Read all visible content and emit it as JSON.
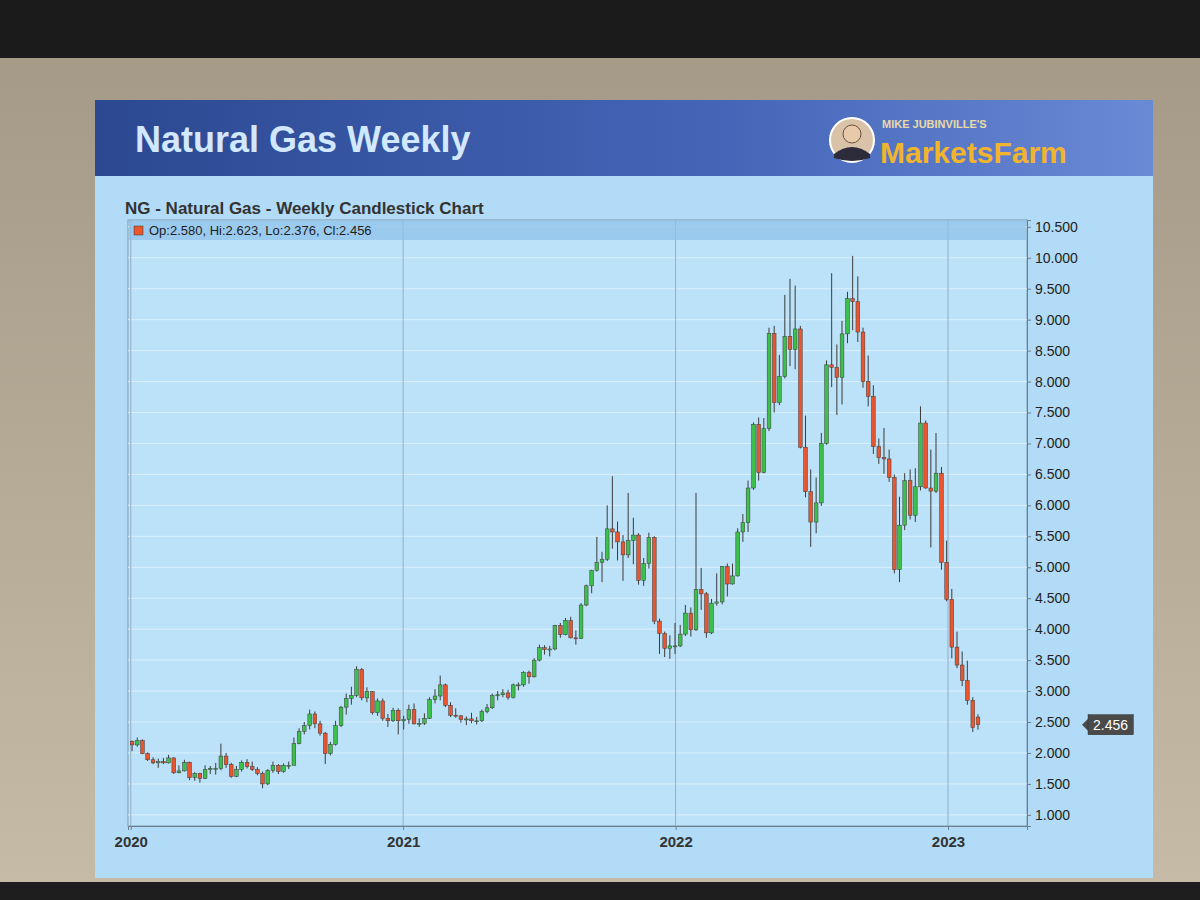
{
  "slide": {
    "title": "Natural Gas Weekly",
    "brand_top": "MIKE JUBINVILLE'S",
    "brand": "MarketsFarm"
  },
  "chart_data": {
    "type": "candlestick",
    "title": "NG - Natural Gas - Weekly Candlestick Chart",
    "annotations": [
      "Op:2.580, Hi:2.623, Lo:2.376, Cl:2.456"
    ],
    "last_price": {
      "value": 2.456,
      "label": "2.456"
    },
    "grid": true,
    "xlim": [
      2019.99,
      2023.29
    ],
    "xticks": [
      2020,
      2021,
      2022,
      2023
    ],
    "ylim": [
      0.82,
      10.61
    ],
    "yticks": [
      {
        "value": 1,
        "label": "1.000"
      },
      {
        "value": 1.5,
        "label": "1.500"
      },
      {
        "value": 2,
        "label": "2.000"
      },
      {
        "value": 2.5,
        "label": "2.500"
      },
      {
        "value": 3,
        "label": "3.000"
      },
      {
        "value": 3.5,
        "label": "3.500"
      },
      {
        "value": 4,
        "label": "4.000"
      },
      {
        "value": 4.5,
        "label": "4.500"
      },
      {
        "value": 5,
        "label": "5.000"
      },
      {
        "value": 5.5,
        "label": "5.500"
      },
      {
        "value": 6,
        "label": "6.000"
      },
      {
        "value": 6.5,
        "label": "6.500"
      },
      {
        "value": 7,
        "label": "7.000"
      },
      {
        "value": 7.5,
        "label": "7.500"
      },
      {
        "value": 8,
        "label": "8.000"
      },
      {
        "value": 8.5,
        "label": "8.500"
      },
      {
        "value": 9,
        "label": "9.000"
      },
      {
        "value": 9.5,
        "label": "9.500"
      },
      {
        "value": 10,
        "label": "10.000"
      },
      {
        "value": 10.5,
        "label": "10.500"
      }
    ],
    "x": [
      2020.005,
      2020.024,
      2020.043,
      2020.062,
      2020.082,
      2020.101,
      2020.12,
      2020.139,
      2020.158,
      2020.177,
      2020.197,
      2020.216,
      2020.235,
      2020.254,
      2020.273,
      2020.292,
      2020.312,
      2020.331,
      2020.35,
      2020.369,
      2020.388,
      2020.407,
      2020.427,
      2020.446,
      2020.465,
      2020.484,
      2020.503,
      2020.522,
      2020.542,
      2020.561,
      2020.58,
      2020.599,
      2020.618,
      2020.637,
      2020.657,
      2020.676,
      2020.695,
      2020.714,
      2020.733,
      2020.752,
      2020.772,
      2020.791,
      2020.81,
      2020.829,
      2020.848,
      2020.867,
      2020.887,
      2020.906,
      2020.925,
      2020.944,
      2020.963,
      2020.982,
      2021.002,
      2021.021,
      2021.04,
      2021.059,
      2021.078,
      2021.097,
      2021.117,
      2021.136,
      2021.155,
      2021.174,
      2021.193,
      2021.212,
      2021.232,
      2021.251,
      2021.27,
      2021.289,
      2021.308,
      2021.327,
      2021.347,
      2021.366,
      2021.385,
      2021.404,
      2021.423,
      2021.442,
      2021.462,
      2021.481,
      2021.5,
      2021.519,
      2021.538,
      2021.557,
      2021.577,
      2021.596,
      2021.615,
      2021.634,
      2021.653,
      2021.672,
      2021.692,
      2021.711,
      2021.73,
      2021.749,
      2021.768,
      2021.787,
      2021.807,
      2021.826,
      2021.845,
      2021.864,
      2021.883,
      2021.902,
      2021.922,
      2021.941,
      2021.96,
      2021.979,
      2021.998,
      2022.017,
      2022.036,
      2022.056,
      2022.075,
      2022.094,
      2022.113,
      2022.132,
      2022.151,
      2022.171,
      2022.19,
      2022.209,
      2022.228,
      2022.247,
      2022.266,
      2022.286,
      2022.305,
      2022.324,
      2022.343,
      2022.362,
      2022.381,
      2022.401,
      2022.42,
      2022.439,
      2022.458,
      2022.477,
      2022.496,
      2022.516,
      2022.535,
      2022.554,
      2022.573,
      2022.592,
      2022.611,
      2022.631,
      2022.65,
      2022.669,
      2022.688,
      2022.707,
      2022.726,
      2022.746,
      2022.765,
      2022.784,
      2022.803,
      2022.822,
      2022.841,
      2022.861,
      2022.88,
      2022.899,
      2022.918,
      2022.937,
      2022.956,
      2022.976,
      2022.995,
      2023.014,
      2023.033,
      2023.052,
      2023.071,
      2023.091,
      2023.11
    ],
    "open": [
      2.19,
      2.13,
      2.2,
      1.99,
      1.89,
      1.84,
      1.86,
      1.84,
      1.92,
      1.68,
      1.71,
      1.85,
      1.6,
      1.67,
      1.59,
      1.73,
      1.75,
      1.75,
      1.95,
      1.81,
      1.62,
      1.73,
      1.85,
      1.78,
      1.73,
      1.67,
      1.5,
      1.72,
      1.8,
      1.7,
      1.8,
      1.8,
      2.15,
      2.35,
      2.44,
      2.63,
      2.47,
      2.32,
      1.99,
      2.14,
      2.44,
      2.74,
      2.88,
      2.93,
      3.35,
      2.89,
      2.99,
      2.65,
      2.84,
      2.56,
      2.52,
      2.69,
      2.52,
      2.54,
      2.7,
      2.47,
      2.48,
      2.56,
      2.86,
      2.92,
      3.1,
      2.77,
      2.61,
      2.6,
      2.54,
      2.55,
      2.52,
      2.52,
      2.67,
      2.73,
      2.93,
      2.94,
      2.97,
      2.9,
      3.1,
      3.1,
      3.3,
      3.23,
      3.5,
      3.7,
      3.67,
      3.68,
      4.06,
      3.91,
      4.14,
      3.86,
      3.85,
      4.39,
      4.7,
      4.95,
      5.08,
      5.13,
      5.62,
      5.57,
      5.41,
      5.2,
      5.43,
      5.52,
      4.79,
      5.06,
      5.48,
      4.13,
      3.93,
      3.69,
      3.73,
      3.73,
      3.92,
      4.26,
      3.99,
      4.64,
      4.57,
      3.94,
      4.42,
      4.44,
      5.01,
      4.73,
      4.86,
      5.57,
      5.72,
      6.28,
      7.31,
      6.53,
      7.24,
      8.78,
      7.66,
      8.08,
      8.73,
      8.52,
      8.85,
      6.94,
      6.22,
      5.73,
      6.04,
      7.0,
      8.27,
      8.23,
      8.07,
      8.77,
      9.34,
      9.29,
      8.8,
      8.0,
      7.76,
      6.95,
      6.77,
      6.75,
      6.45,
      4.96,
      5.68,
      6.4,
      5.84,
      6.3,
      7.33,
      6.28,
      6.23,
      6.52,
      5.08,
      4.48,
      3.71,
      3.42,
      3.17,
      2.85,
      2.58
    ],
    "high": [
      2.2,
      2.25,
      2.22,
      2.01,
      1.93,
      1.91,
      1.92,
      1.97,
      1.93,
      1.8,
      1.89,
      1.86,
      1.69,
      1.68,
      1.8,
      1.79,
      1.84,
      2.15,
      2.0,
      1.84,
      1.79,
      1.88,
      1.9,
      1.86,
      1.77,
      1.7,
      1.74,
      1.86,
      1.82,
      1.83,
      1.86,
      2.25,
      2.4,
      2.5,
      2.7,
      2.67,
      2.52,
      2.34,
      2.18,
      2.52,
      2.76,
      2.96,
      3.07,
      3.4,
      3.37,
      3.06,
      3.0,
      2.88,
      2.88,
      2.63,
      2.73,
      2.72,
      2.6,
      2.78,
      2.8,
      2.56,
      2.64,
      2.9,
      3.03,
      3.25,
      3.12,
      2.82,
      2.72,
      2.61,
      2.59,
      2.65,
      2.58,
      2.7,
      2.79,
      2.96,
      3.0,
      3.03,
      3.02,
      3.12,
      3.14,
      3.32,
      3.33,
      3.53,
      3.75,
      3.74,
      3.73,
      4.07,
      4.1,
      4.18,
      4.2,
      3.98,
      4.42,
      4.72,
      4.96,
      5.49,
      5.25,
      6.0,
      6.47,
      5.74,
      5.52,
      6.2,
      5.8,
      5.55,
      5.15,
      5.56,
      5.5,
      4.17,
      3.96,
      3.9,
      4.1,
      4.07,
      4.39,
      4.35,
      6.2,
      4.99,
      4.6,
      4.49,
      4.9,
      5.02,
      5.06,
      5.06,
      5.63,
      5.86,
      6.4,
      7.34,
      7.42,
      7.41,
      8.87,
      8.9,
      8.43,
      9.4,
      9.66,
      9.55,
      8.9,
      7.45,
      6.58,
      6.45,
      7.17,
      8.34,
      9.75,
      8.6,
      8.98,
      9.45,
      10.03,
      9.7,
      8.87,
      8.42,
      7.94,
      7.08,
      7.25,
      6.9,
      6.5,
      6.14,
      6.52,
      6.58,
      6.6,
      7.6,
      7.37,
      6.9,
      7.17,
      6.62,
      5.43,
      4.65,
      3.96,
      3.64,
      3.49,
      2.9,
      2.623
    ],
    "low": [
      2.03,
      2.1,
      1.98,
      1.87,
      1.82,
      1.76,
      1.82,
      1.83,
      1.66,
      1.67,
      1.7,
      1.56,
      1.55,
      1.52,
      1.58,
      1.66,
      1.65,
      1.72,
      1.76,
      1.6,
      1.61,
      1.7,
      1.75,
      1.71,
      1.64,
      1.43,
      1.48,
      1.68,
      1.66,
      1.68,
      1.74,
      1.8,
      2.14,
      2.3,
      2.38,
      2.4,
      2.28,
      1.82,
      1.96,
      2.12,
      2.42,
      2.62,
      2.78,
      2.9,
      2.85,
      2.82,
      2.62,
      2.6,
      2.52,
      2.42,
      2.5,
      2.3,
      2.38,
      2.47,
      2.46,
      2.42,
      2.45,
      2.55,
      2.8,
      2.85,
      2.74,
      2.58,
      2.57,
      2.49,
      2.45,
      2.48,
      2.46,
      2.5,
      2.64,
      2.71,
      2.85,
      2.9,
      2.86,
      2.88,
      3.01,
      3.07,
      3.12,
      3.22,
      3.48,
      3.59,
      3.56,
      3.66,
      3.86,
      3.9,
      3.85,
      3.75,
      3.84,
      4.37,
      4.58,
      4.93,
      4.76,
      5.1,
      5.3,
      5.11,
      4.78,
      5.15,
      5.05,
      4.72,
      4.7,
      4.98,
      4.08,
      3.6,
      3.55,
      3.52,
      3.6,
      3.71,
      3.89,
      3.88,
      3.97,
      4.31,
      3.86,
      3.92,
      4.38,
      4.4,
      4.53,
      4.72,
      4.85,
      5.41,
      5.57,
      6.25,
      6.4,
      6.52,
      7.2,
      7.5,
      7.62,
      8.05,
      8.25,
      8.2,
      6.92,
      6.13,
      5.33,
      5.55,
      5.99,
      6.98,
      7.91,
      7.46,
      7.63,
      8.62,
      8.83,
      8.64,
      7.9,
      7.6,
      6.83,
      6.67,
      6.51,
      6.38,
      4.9,
      4.76,
      5.6,
      5.77,
      5.73,
      6.24,
      6.27,
      5.32,
      6.2,
      4.96,
      4.45,
      3.53,
      3.37,
      3.08,
      2.78,
      2.34,
      2.376
    ],
    "close": [
      2.13,
      2.2,
      1.99,
      1.89,
      1.84,
      1.86,
      1.84,
      1.92,
      1.68,
      1.71,
      1.85,
      1.6,
      1.67,
      1.59,
      1.73,
      1.75,
      1.75,
      1.95,
      1.81,
      1.62,
      1.73,
      1.85,
      1.78,
      1.73,
      1.67,
      1.5,
      1.72,
      1.8,
      1.7,
      1.8,
      1.8,
      2.15,
      2.35,
      2.44,
      2.63,
      2.47,
      2.32,
      1.99,
      2.14,
      2.44,
      2.74,
      2.88,
      2.93,
      3.35,
      2.89,
      2.99,
      2.65,
      2.84,
      2.56,
      2.52,
      2.69,
      2.52,
      2.54,
      2.7,
      2.47,
      2.48,
      2.56,
      2.86,
      2.92,
      3.1,
      2.77,
      2.61,
      2.6,
      2.54,
      2.55,
      2.52,
      2.52,
      2.67,
      2.73,
      2.93,
      2.94,
      2.97,
      2.9,
      3.1,
      3.1,
      3.3,
      3.23,
      3.5,
      3.7,
      3.67,
      3.68,
      4.06,
      3.91,
      4.14,
      3.86,
      3.85,
      4.39,
      4.7,
      4.95,
      5.08,
      5.13,
      5.62,
      5.57,
      5.41,
      5.2,
      5.43,
      5.52,
      4.79,
      5.06,
      5.48,
      4.13,
      3.93,
      3.69,
      3.73,
      3.73,
      3.92,
      4.26,
      3.99,
      4.64,
      4.57,
      3.94,
      4.42,
      4.44,
      5.01,
      4.73,
      4.86,
      5.57,
      5.72,
      6.28,
      7.31,
      6.53,
      7.24,
      8.78,
      7.66,
      8.08,
      8.73,
      8.52,
      8.85,
      6.94,
      6.22,
      5.73,
      6.04,
      7.0,
      8.27,
      8.23,
      8.07,
      8.77,
      9.34,
      9.29,
      8.8,
      8.0,
      7.76,
      6.95,
      6.77,
      6.75,
      6.45,
      4.96,
      5.68,
      6.4,
      5.84,
      6.3,
      7.33,
      6.28,
      6.23,
      6.52,
      5.08,
      4.48,
      3.71,
      3.42,
      3.17,
      2.85,
      2.41,
      2.456
    ]
  }
}
